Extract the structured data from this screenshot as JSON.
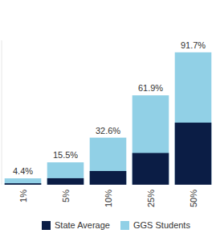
{
  "chart_data": {
    "type": "bar",
    "stacked": false,
    "legend": "bottom",
    "tick_labels": "x",
    "grid": false,
    "categories": [
      "1%",
      "5%",
      "10%",
      "25%",
      "50%"
    ],
    "ylim": [
      0,
      100
    ],
    "series": [
      {
        "name": "State Average",
        "color": "#0b1d45",
        "values": [
          1,
          4.5,
          9.5,
          22,
          43
        ]
      },
      {
        "name": "GGS Students",
        "color": "#91d0e6",
        "values": [
          4.4,
          15.5,
          32.6,
          61.9,
          91.7
        ],
        "data_labels": true,
        "value_labels": [
          "4.4%",
          "15.5%",
          "32.6%",
          "61.9%",
          "91.7%"
        ]
      }
    ]
  }
}
